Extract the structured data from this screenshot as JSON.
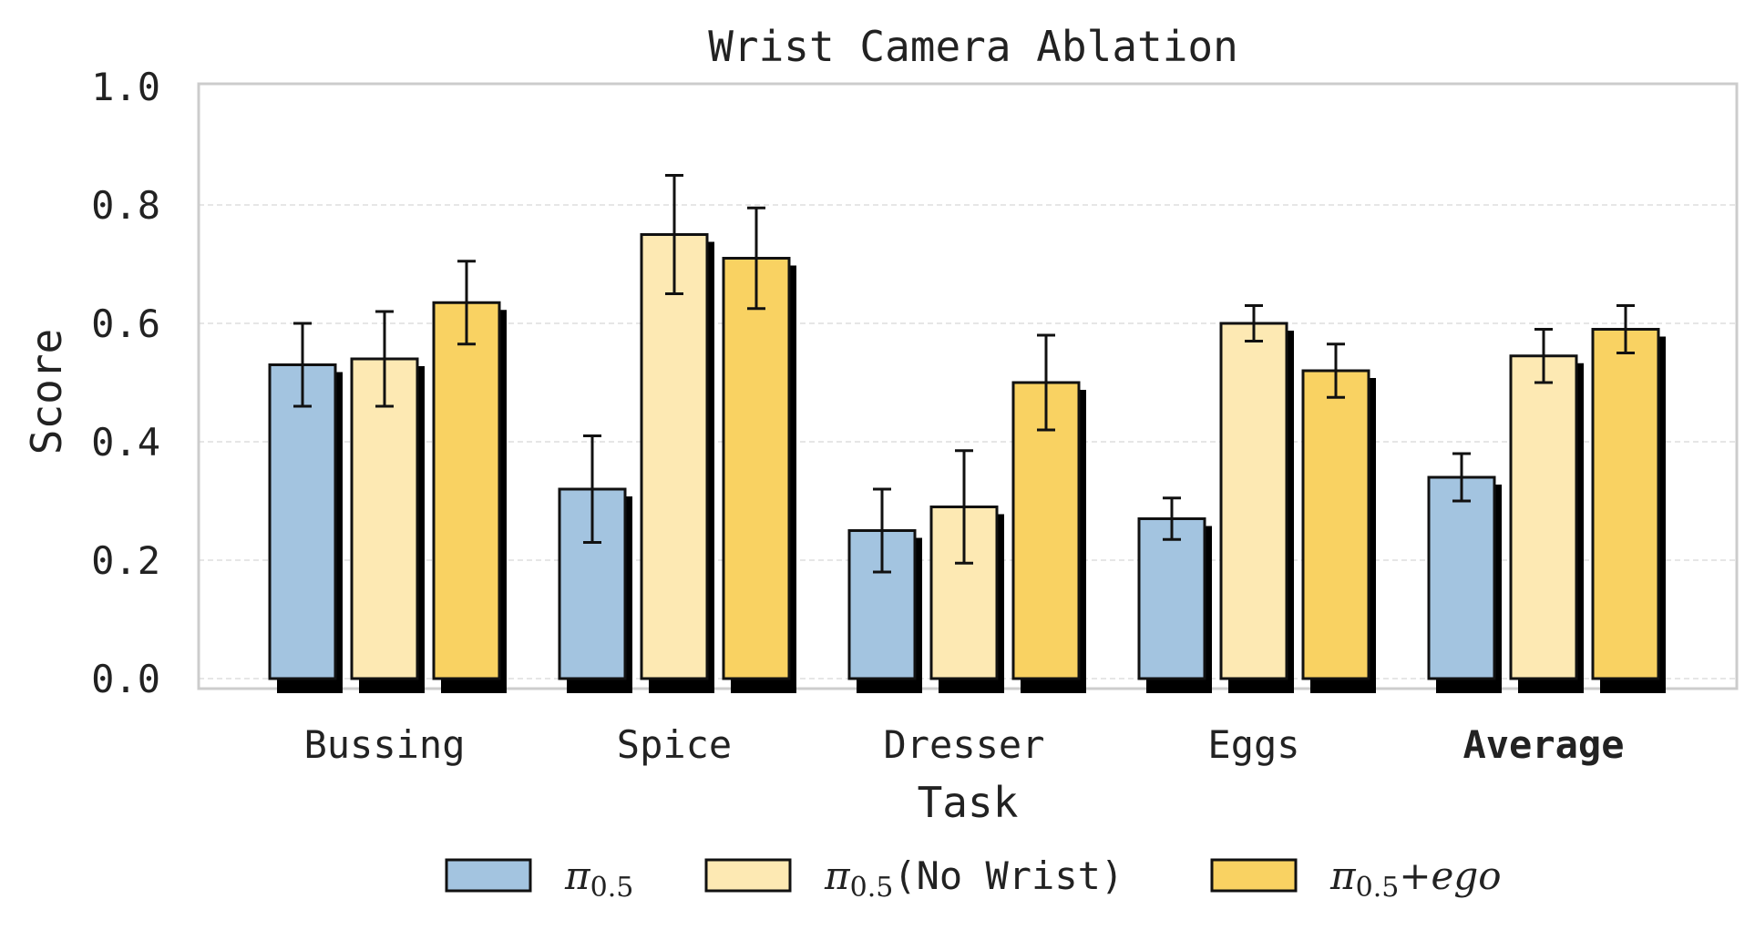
{
  "chart_data": {
    "type": "bar",
    "title": "Wrist Camera Ablation",
    "xlabel": "Task",
    "ylabel": "Score",
    "ylim": [
      0,
      1.0
    ],
    "yticks": [
      "0.0",
      "0.2",
      "0.4",
      "0.6",
      "0.8",
      "1.0"
    ],
    "grid": true,
    "legend_position": "bottom-center",
    "categories": [
      "Bussing",
      "Spice",
      "Dresser",
      "Eggs",
      "Average"
    ],
    "bold_categories": [
      "Average"
    ],
    "series": [
      {
        "name": "π0.5",
        "legend_main": "π",
        "legend_sub": "0.5",
        "legend_suffix": "",
        "color": "#a3c4e0",
        "values": [
          0.53,
          0.32,
          0.25,
          0.27,
          0.34
        ],
        "errors": [
          0.07,
          0.09,
          0.07,
          0.035,
          0.04
        ]
      },
      {
        "name": "π0.5(No Wrist)",
        "legend_main": "π",
        "legend_sub": "0.5",
        "legend_suffix": "(No Wrist)",
        "color": "#fde9b3",
        "values": [
          0.54,
          0.75,
          0.29,
          0.6,
          0.545
        ],
        "errors": [
          0.08,
          0.1,
          0.095,
          0.03,
          0.045
        ]
      },
      {
        "name": "π0.5+ego",
        "legend_main": "π",
        "legend_sub": "0.5",
        "legend_suffix": "+ego",
        "color": "#f9d262",
        "values": [
          0.635,
          0.71,
          0.5,
          0.52,
          0.59
        ],
        "errors": [
          0.07,
          0.085,
          0.08,
          0.045,
          0.04
        ]
      }
    ]
  }
}
